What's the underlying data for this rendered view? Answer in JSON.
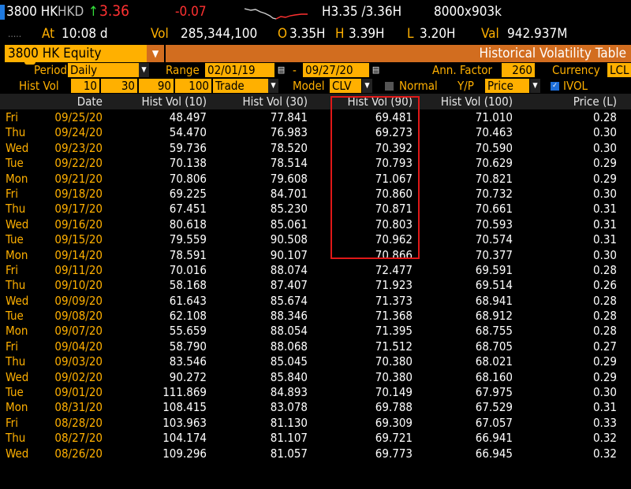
{
  "ticker": {
    "code": "3800 HK",
    "currency": "HKD",
    "arrow": "↑",
    "last": "3.36",
    "change": "-0.07",
    "bidask": "H3.35 /3.36H",
    "size": "8000x903k",
    "at_label": "At",
    "time": "10:08 d",
    "vol_label": "Vol",
    "volume": "285,344,100",
    "open_label": "O",
    "open": "3.35H",
    "high_label": "H",
    "high": "3.39H",
    "low_label": "L",
    "low": "3.20H",
    "val_label": "Val",
    "value": "942.937M"
  },
  "security_field": "3800 HK Equity",
  "screen_title": "Historical Volatility Table",
  "controls": {
    "period_label": "Period",
    "period_value": "Daily",
    "range_label": "Range",
    "range_start": "02/01/19",
    "range_sep": "-",
    "range_end": "09/27/20",
    "ann_factor_label": "Ann. Factor",
    "ann_factor_value": "260",
    "currency_label": "Currency",
    "currency_value": "LCL",
    "histvol_label": "Hist Vol",
    "histvol_windows": [
      "10",
      "30",
      "90",
      "100"
    ],
    "price_type": "Trade",
    "model_label": "Model",
    "model_value": "CLV",
    "normal_label": "Normal",
    "yp_label": "Y/P",
    "yp_value": "Price",
    "ivol_label": "IVOL"
  },
  "columns": [
    "Date",
    "Hist Vol (10)",
    "Hist Vol (30)",
    "Hist Vol (90)",
    "Hist Vol (100)",
    "Price (L)"
  ],
  "rows": [
    {
      "day": "Fri",
      "date": "09/25/20",
      "hv10": "48.497",
      "hv30": "77.841",
      "hv90": "69.481",
      "hv100": "71.010",
      "price": "0.28"
    },
    {
      "day": "Thu",
      "date": "09/24/20",
      "hv10": "54.470",
      "hv30": "76.983",
      "hv90": "69.273",
      "hv100": "70.463",
      "price": "0.30"
    },
    {
      "day": "Wed",
      "date": "09/23/20",
      "hv10": "59.736",
      "hv30": "78.520",
      "hv90": "70.392",
      "hv100": "70.590",
      "price": "0.30"
    },
    {
      "day": "Tue",
      "date": "09/22/20",
      "hv10": "70.138",
      "hv30": "78.514",
      "hv90": "70.793",
      "hv100": "70.629",
      "price": "0.29"
    },
    {
      "day": "Mon",
      "date": "09/21/20",
      "hv10": "70.806",
      "hv30": "79.608",
      "hv90": "71.067",
      "hv100": "70.821",
      "price": "0.29"
    },
    {
      "day": "Fri",
      "date": "09/18/20",
      "hv10": "69.225",
      "hv30": "84.701",
      "hv90": "70.860",
      "hv100": "70.732",
      "price": "0.30"
    },
    {
      "day": "Thu",
      "date": "09/17/20",
      "hv10": "67.451",
      "hv30": "85.230",
      "hv90": "70.871",
      "hv100": "70.661",
      "price": "0.31"
    },
    {
      "day": "Wed",
      "date": "09/16/20",
      "hv10": "80.618",
      "hv30": "85.061",
      "hv90": "70.803",
      "hv100": "70.593",
      "price": "0.31"
    },
    {
      "day": "Tue",
      "date": "09/15/20",
      "hv10": "79.559",
      "hv30": "90.508",
      "hv90": "70.962",
      "hv100": "70.574",
      "price": "0.31"
    },
    {
      "day": "Mon",
      "date": "09/14/20",
      "hv10": "78.591",
      "hv30": "90.107",
      "hv90": "70.866",
      "hv100": "70.377",
      "price": "0.30"
    },
    {
      "day": "Fri",
      "date": "09/11/20",
      "hv10": "70.016",
      "hv30": "88.074",
      "hv90": "72.477",
      "hv100": "69.591",
      "price": "0.28"
    },
    {
      "day": "Thu",
      "date": "09/10/20",
      "hv10": "58.168",
      "hv30": "87.407",
      "hv90": "71.923",
      "hv100": "69.514",
      "price": "0.26"
    },
    {
      "day": "Wed",
      "date": "09/09/20",
      "hv10": "61.643",
      "hv30": "85.674",
      "hv90": "71.373",
      "hv100": "68.941",
      "price": "0.28"
    },
    {
      "day": "Tue",
      "date": "09/08/20",
      "hv10": "62.108",
      "hv30": "88.346",
      "hv90": "71.368",
      "hv100": "68.912",
      "price": "0.28"
    },
    {
      "day": "Mon",
      "date": "09/07/20",
      "hv10": "55.659",
      "hv30": "88.054",
      "hv90": "71.395",
      "hv100": "68.755",
      "price": "0.28"
    },
    {
      "day": "Fri",
      "date": "09/04/20",
      "hv10": "58.790",
      "hv30": "88.068",
      "hv90": "71.512",
      "hv100": "68.705",
      "price": "0.27"
    },
    {
      "day": "Thu",
      "date": "09/03/20",
      "hv10": "83.546",
      "hv30": "85.045",
      "hv90": "70.380",
      "hv100": "68.021",
      "price": "0.29"
    },
    {
      "day": "Wed",
      "date": "09/02/20",
      "hv10": "90.272",
      "hv30": "85.840",
      "hv90": "70.380",
      "hv100": "68.160",
      "price": "0.29"
    },
    {
      "day": "Tue",
      "date": "09/01/20",
      "hv10": "111.869",
      "hv30": "84.893",
      "hv90": "70.149",
      "hv100": "67.975",
      "price": "0.30"
    },
    {
      "day": "Mon",
      "date": "08/31/20",
      "hv10": "108.415",
      "hv30": "83.078",
      "hv90": "69.788",
      "hv100": "67.529",
      "price": "0.31"
    },
    {
      "day": "Fri",
      "date": "08/28/20",
      "hv10": "103.963",
      "hv30": "81.130",
      "hv90": "69.309",
      "hv100": "67.057",
      "price": "0.33"
    },
    {
      "day": "Thu",
      "date": "08/27/20",
      "hv10": "104.174",
      "hv30": "81.107",
      "hv90": "69.721",
      "hv100": "66.941",
      "price": "0.32"
    },
    {
      "day": "Wed",
      "date": "08/26/20",
      "hv10": "109.296",
      "hv30": "81.057",
      "hv90": "69.773",
      "hv100": "66.945",
      "price": "0.32"
    }
  ],
  "colors": {
    "amber": "#ffb000",
    "orange_bar": "#d26d1f",
    "up": "#34e13a",
    "down": "#ff3131",
    "highlight": "#e01818"
  },
  "icons": {
    "market_status": "gauge-icon",
    "dropdown": "chevron-down-icon",
    "calendar": "calendar-icon",
    "checkbox": "checkbox-icon"
  }
}
